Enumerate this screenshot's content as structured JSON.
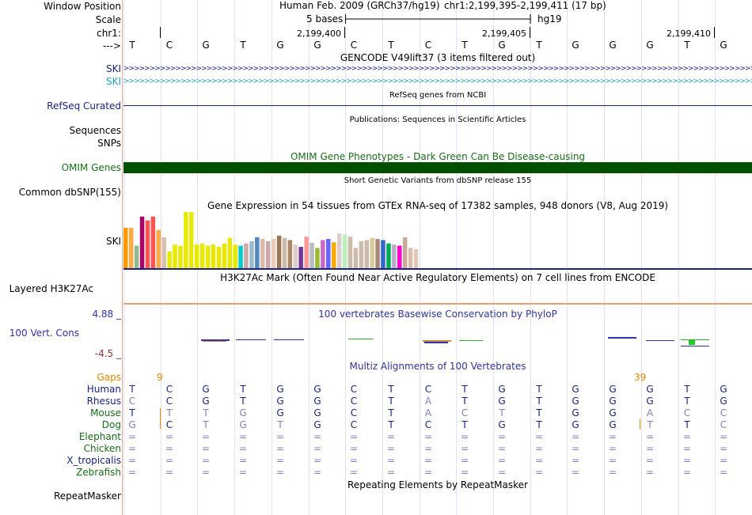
{
  "labels": {
    "window_position": "Window Position",
    "scale": "Scale",
    "chr": "chr1:",
    "arrow": "--->",
    "ski1": "SKI",
    "ski2": "SKI",
    "refseq": "RefSeq Curated",
    "sequences": "Sequences",
    "snps": "SNPs",
    "omim": "OMIM Genes",
    "common_dbsnp": "Common dbSNP(155)",
    "ski_gtex": "SKI",
    "layered": "Layered H3K27Ac",
    "phylop_max": "4.88 _",
    "vert_cons": "100 Vert. Cons",
    "phylop_min": "-4.5 _",
    "gaps": "Gaps",
    "repeatmasker": "RepeatMasker"
  },
  "header": {
    "assembly": "Human Feb. 2009 (GRCh37/hg19)",
    "position": "chr1:2,199,395-2,199,411 (17 bp)",
    "scale_text": "5 bases",
    "scale_db": "hg19",
    "coords": [
      "2,199,400",
      "2,199,405",
      "2,199,410"
    ]
  },
  "sequence": [
    "T",
    "C",
    "G",
    "T",
    "G",
    "G",
    "C",
    "T",
    "C",
    "T",
    "G",
    "T",
    "G",
    "G",
    "G",
    "T",
    "G"
  ],
  "titles": {
    "gencode": "GENCODE V49lift37 (3 items filtered out)",
    "refseq": "RefSeq genes from NCBI",
    "publications": "Publications: Sequences in Scientific Articles",
    "omim": "OMIM Gene Phenotypes - Dark Green Can Be Disease-causing",
    "dbsnp": "Short Genetic Variants from dbSNP release 155",
    "gtex": "Gene Expression in 54 tissues from GTEx RNA-seq of 17382 samples, 948 donors (V8, Aug 2019)",
    "h3k27ac": "H3K27Ac Mark (Often Found Near Active Regulatory Elements) on 7 cell lines from ENCODE",
    "phylop": "100 vertebrates Basewise Conservation by PhyloP",
    "multiz": "Multiz Alignments of 100 Vertebrates",
    "repeat": "Repeating Elements by RepeatMasker"
  },
  "gaps": {
    "left": "9",
    "right": "39"
  },
  "species": [
    {
      "name": "Human",
      "color": "#1a237e",
      "bases": [
        "T",
        "C",
        "G",
        "T",
        "G",
        "G",
        "C",
        "T",
        "C",
        "T",
        "G",
        "T",
        "G",
        "G",
        "G",
        "T",
        "G"
      ],
      "dim": []
    },
    {
      "name": "Rhesus",
      "color": "#1a237e",
      "bases": [
        "C",
        "C",
        "G",
        "T",
        "G",
        "G",
        "C",
        "T",
        "A",
        "T",
        "G",
        "T",
        "G",
        "G",
        "G",
        "T",
        "G"
      ],
      "dim": [
        0,
        8
      ]
    },
    {
      "name": "Mouse",
      "color": "#1a6b1a",
      "bases": [
        "T",
        "T",
        "T",
        "G",
        "G",
        "G",
        "C",
        "T",
        "A",
        "C",
        "T",
        "T",
        "G",
        "G",
        "A",
        "C",
        "C"
      ],
      "dim": [
        1,
        2,
        3,
        8,
        9,
        10,
        14,
        15,
        16
      ]
    },
    {
      "name": "Dog",
      "color": "#1a6b1a",
      "bases": [
        "G",
        "C",
        "T",
        "G",
        "T",
        "G",
        "C",
        "T",
        "C",
        "T",
        "G",
        "T",
        "G",
        "G",
        "T",
        "T",
        "C"
      ],
      "dim": [
        0,
        2,
        3,
        4,
        14,
        16
      ]
    },
    {
      "name": "Elephant",
      "color": "#1a6b1a",
      "bases": [
        "=",
        "=",
        "=",
        "=",
        "=",
        "=",
        "=",
        "=",
        "=",
        "=",
        "=",
        "=",
        "=",
        "=",
        "=",
        "=",
        "="
      ],
      "dim": [
        0,
        1,
        2,
        3,
        4,
        5,
        6,
        7,
        8,
        9,
        10,
        11,
        12,
        13,
        14,
        15,
        16
      ]
    },
    {
      "name": "Chicken",
      "color": "#1a6b1a",
      "bases": [
        "=",
        "=",
        "=",
        "=",
        "=",
        "=",
        "=",
        "=",
        "=",
        "=",
        "=",
        "=",
        "=",
        "=",
        "=",
        "=",
        "="
      ],
      "dim": [
        0,
        1,
        2,
        3,
        4,
        5,
        6,
        7,
        8,
        9,
        10,
        11,
        12,
        13,
        14,
        15,
        16
      ]
    },
    {
      "name": "X_tropicalis",
      "color": "#1a237e",
      "bases": [
        "=",
        "=",
        "=",
        "=",
        "=",
        "=",
        "=",
        "=",
        "=",
        "=",
        "=",
        "=",
        "=",
        "=",
        "=",
        "=",
        "="
      ],
      "dim": [
        0,
        1,
        2,
        3,
        4,
        5,
        6,
        7,
        8,
        9,
        10,
        11,
        12,
        13,
        14,
        15,
        16
      ]
    },
    {
      "name": "Zebrafish",
      "color": "#1a6b1a",
      "bases": [
        "=",
        "=",
        "=",
        "=",
        "=",
        "=",
        "=",
        "=",
        "=",
        "=",
        "=",
        "=",
        "=",
        "=",
        "=",
        "=",
        "="
      ],
      "dim": [
        0,
        1,
        2,
        3,
        4,
        5,
        6,
        7,
        8,
        9,
        10,
        11,
        12,
        13,
        14,
        15,
        16
      ]
    }
  ],
  "gtex_values": [
    72,
    72,
    40,
    92,
    85,
    92,
    68,
    55,
    30,
    42,
    40,
    100,
    100,
    42,
    44,
    40,
    42,
    38,
    44,
    54,
    42,
    40,
    44,
    48,
    55,
    52,
    48,
    52,
    58,
    54,
    50,
    42,
    38,
    56,
    45,
    36,
    50,
    52,
    46,
    62,
    60,
    56,
    36,
    48,
    50,
    54,
    52,
    50,
    44,
    42,
    40,
    55,
    36,
    34
  ],
  "gtex_colors": [
    "#ff9900",
    "#ffaa44",
    "#8fbc8f",
    "#aa0066",
    "#ff5555",
    "#ff5555",
    "#ffaa44",
    "#d8bfb0",
    "#e8e800",
    "#e8e800",
    "#e8e800",
    "#e8e800",
    "#e8e800",
    "#e8e800",
    "#e8e800",
    "#e8e800",
    "#e8e800",
    "#e8e800",
    "#e8e800",
    "#e8e800",
    "#e8e800",
    "#00cccc",
    "#ccaaaa",
    "#99bbcc",
    "#5588bb",
    "#ddbbaa",
    "#ccaaaa",
    "#eeccbb",
    "#997755",
    "#ccbbaa",
    "#aa8866",
    "#ddcccc",
    "#773399",
    "#ff9999",
    "#bbbbbb",
    "#99bb33",
    "#cc66cc",
    "#6666ff",
    "#ffaa00",
    "#ddcccc",
    "#bbeebb",
    "#ccbbaa",
    "#ccbbaa",
    "#ccbbaa",
    "#ccbbaa",
    "#ddcc99",
    "#aa8877",
    "#3366cc",
    "#00aa55",
    "#bbaacc",
    "#ff00cc",
    "#ccaa99",
    "#d8bfb0",
    "#e0c8b8"
  ],
  "colors": {
    "omim_bar": "#005000",
    "gene_navy": "#1a237e",
    "gene_teal": "#22a0b0",
    "gaps_orange": "#e08800",
    "phylop_title": "#333399",
    "cons_label": "#3333aa",
    "phylop_max": "#3333aa",
    "phylop_min": "#993333"
  },
  "icons": {
    "strand_arrow": ">"
  }
}
